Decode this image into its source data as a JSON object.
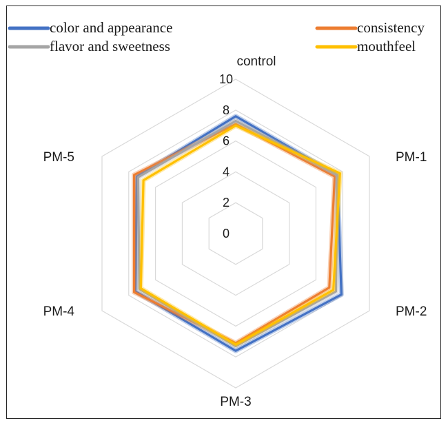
{
  "chart_data": {
    "type": "radar",
    "title": "",
    "axes": [
      "control",
      "PM-1",
      "PM-2",
      "PM-3",
      "PM-4",
      "PM-5"
    ],
    "rlim": [
      0,
      10
    ],
    "ticks": [
      "0",
      "2",
      "4",
      "6",
      "8",
      "10"
    ],
    "grid": true,
    "legend_position": "top",
    "series": [
      {
        "name": "color and appearance",
        "color": "#4472C4",
        "values": [
          7.6,
          7.6,
          7.9,
          7.6,
          7.5,
          7.4
        ]
      },
      {
        "name": "consistency",
        "color": "#ED7D31",
        "values": [
          7.1,
          7.4,
          7.0,
          7.1,
          7.6,
          7.6
        ]
      },
      {
        "name": "flavor and sweetness",
        "color": "#A5A5A5",
        "values": [
          7.3,
          7.6,
          7.5,
          7.3,
          7.2,
          7.3
        ]
      },
      {
        "name": "mouthfeel",
        "color": "#FFC000",
        "values": [
          7.0,
          7.8,
          7.3,
          7.2,
          7.1,
          6.9
        ]
      }
    ]
  }
}
